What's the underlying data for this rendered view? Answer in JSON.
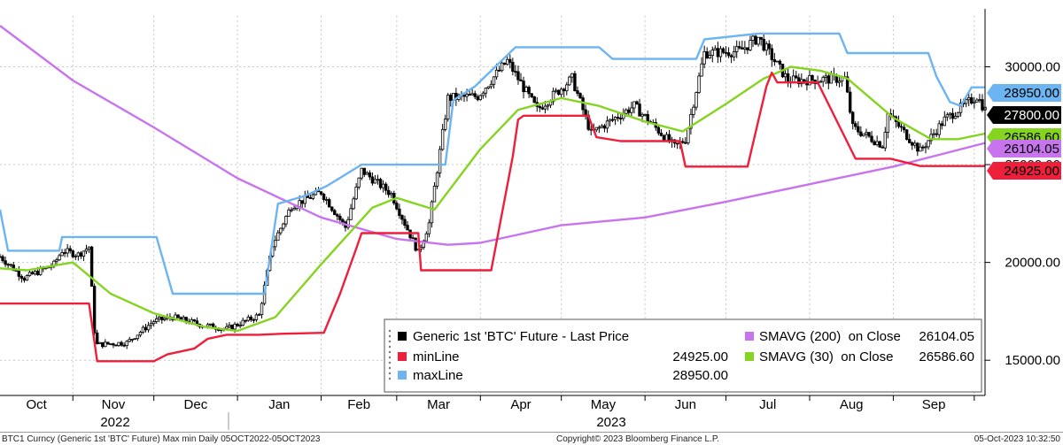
{
  "chart_data": {
    "type": "line",
    "x_axis": {
      "month_labels": [
        "Oct",
        "Nov",
        "Dec",
        "Jan",
        "Feb",
        "Mar",
        "Apr",
        "May",
        "Jun",
        "Jul",
        "Aug",
        "Sep"
      ],
      "year_labels": [
        "2022",
        "2023"
      ]
    },
    "y_axis": {
      "ticks": [
        15000,
        20000,
        25000,
        30000
      ],
      "tick_labels": [
        "15000.00",
        "20000.00",
        "25000.00",
        "30000.00"
      ],
      "ylim": [
        13200,
        32600
      ],
      "grid": true
    },
    "x_range": [
      "2022-10-05",
      "2023-10-05"
    ],
    "series": [
      {
        "name": "Generic 1st 'BTC' Future - Last Price",
        "kind": "candlestick",
        "color": "#000000",
        "last_value": "27800.00",
        "points": [
          [
            "2022-10-05",
            20300
          ],
          [
            "2022-10-14",
            19200
          ],
          [
            "2022-10-25",
            19900
          ],
          [
            "2022-10-28",
            20600
          ],
          [
            "2022-11-03",
            20400
          ],
          [
            "2022-11-07",
            20800
          ],
          [
            "2022-11-09",
            16500
          ],
          [
            "2022-11-10",
            15800
          ],
          [
            "2022-11-21",
            15900
          ],
          [
            "2022-12-01",
            17000
          ],
          [
            "2022-12-08",
            17200
          ],
          [
            "2022-12-19",
            16800
          ],
          [
            "2022-12-28",
            16600
          ],
          [
            "2023-01-09",
            17300
          ],
          [
            "2023-01-14",
            20900
          ],
          [
            "2023-01-21",
            22900
          ],
          [
            "2023-02-01",
            23600
          ],
          [
            "2023-02-10",
            21800
          ],
          [
            "2023-02-16",
            24700
          ],
          [
            "2023-02-27",
            23500
          ],
          [
            "2023-03-09",
            20500
          ],
          [
            "2023-03-13",
            22000
          ],
          [
            "2023-03-20",
            28400
          ],
          [
            "2023-03-31",
            28500
          ],
          [
            "2023-04-11",
            30300
          ],
          [
            "2023-04-22",
            27800
          ],
          [
            "2023-05-05",
            29400
          ],
          [
            "2023-05-12",
            26600
          ],
          [
            "2023-05-28",
            28000
          ],
          [
            "2023-06-12",
            25900
          ],
          [
            "2023-06-16",
            26300
          ],
          [
            "2023-06-23",
            30700
          ],
          [
            "2023-07-06",
            30800
          ],
          [
            "2023-07-13",
            31500
          ],
          [
            "2023-07-24",
            29300
          ],
          [
            "2023-08-14",
            29400
          ],
          [
            "2023-08-17",
            26900
          ],
          [
            "2023-08-28",
            26000
          ],
          [
            "2023-08-30",
            27600
          ],
          [
            "2023-09-11",
            25700
          ],
          [
            "2023-09-20",
            27300
          ],
          [
            "2023-10-02",
            28500
          ],
          [
            "2023-10-05",
            27800
          ]
        ]
      },
      {
        "name": "minLine",
        "kind": "line",
        "color": "#ee1f3b",
        "last_value": "24925.00",
        "legend_value": "24925.00",
        "points": [
          [
            "2022-10-05",
            17900
          ],
          [
            "2022-11-07",
            17900
          ],
          [
            "2022-11-10",
            14950
          ],
          [
            "2022-12-01",
            14950
          ],
          [
            "2022-12-06",
            15300
          ],
          [
            "2022-12-16",
            15600
          ],
          [
            "2022-12-21",
            16100
          ],
          [
            "2022-12-28",
            16300
          ],
          [
            "2023-01-09",
            16300
          ],
          [
            "2023-01-17",
            16350
          ],
          [
            "2023-02-02",
            16400
          ],
          [
            "2023-02-08",
            18400
          ],
          [
            "2023-02-14",
            20700
          ],
          [
            "2023-02-16",
            21500
          ],
          [
            "2023-03-09",
            21500
          ],
          [
            "2023-03-10",
            19600
          ],
          [
            "2023-04-05",
            19600
          ],
          [
            "2023-04-13",
            25400
          ],
          [
            "2023-04-15",
            27300
          ],
          [
            "2023-04-17",
            27500
          ],
          [
            "2023-05-11",
            27500
          ],
          [
            "2023-05-14",
            26400
          ],
          [
            "2023-05-23",
            26200
          ],
          [
            "2023-06-14",
            26200
          ],
          [
            "2023-06-16",
            24900
          ],
          [
            "2023-07-09",
            24900
          ],
          [
            "2023-07-16",
            29000
          ],
          [
            "2023-07-18",
            29700
          ],
          [
            "2023-07-20",
            29200
          ],
          [
            "2023-08-04",
            29200
          ],
          [
            "2023-08-18",
            25300
          ],
          [
            "2023-08-31",
            25300
          ],
          [
            "2023-09-11",
            24925
          ],
          [
            "2023-10-05",
            24925
          ]
        ]
      },
      {
        "name": "maxLine",
        "kind": "line",
        "color": "#6cb4f2",
        "last_value": "28950.00",
        "legend_value": "28950.00",
        "points": [
          [
            "2022-10-05",
            22700
          ],
          [
            "2022-10-08",
            20600
          ],
          [
            "2022-10-27",
            20600
          ],
          [
            "2022-10-28",
            21300
          ],
          [
            "2022-12-02",
            21300
          ],
          [
            "2022-12-08",
            18400
          ],
          [
            "2023-01-11",
            18400
          ],
          [
            "2023-01-16",
            23000
          ],
          [
            "2023-01-26",
            23400
          ],
          [
            "2023-02-03",
            23900
          ],
          [
            "2023-02-16",
            25000
          ],
          [
            "2023-03-19",
            25000
          ],
          [
            "2023-03-22",
            28300
          ],
          [
            "2023-03-30",
            29000
          ],
          [
            "2023-04-11",
            30600
          ],
          [
            "2023-04-14",
            31000
          ],
          [
            "2023-05-15",
            31000
          ],
          [
            "2023-05-20",
            30400
          ],
          [
            "2023-06-20",
            30400
          ],
          [
            "2023-06-23",
            31400
          ],
          [
            "2023-07-13",
            31700
          ],
          [
            "2023-08-12",
            31700
          ],
          [
            "2023-08-15",
            30700
          ],
          [
            "2023-09-14",
            30700
          ],
          [
            "2023-09-17",
            29500
          ],
          [
            "2023-09-22",
            28200
          ],
          [
            "2023-09-26",
            28000
          ],
          [
            "2023-09-30",
            28950
          ],
          [
            "2023-10-05",
            28950
          ]
        ]
      },
      {
        "name": "SMAVG (200)  on Close",
        "kind": "line",
        "color": "#c774ee",
        "last_value": "26104.05",
        "legend_value": "26104.05",
        "points": [
          [
            "2022-10-05",
            32100
          ],
          [
            "2022-11-01",
            29300
          ],
          [
            "2022-12-01",
            26900
          ],
          [
            "2023-01-01",
            24300
          ],
          [
            "2023-02-01",
            22300
          ],
          [
            "2023-03-01",
            21200
          ],
          [
            "2023-03-20",
            20900
          ],
          [
            "2023-04-01",
            21000
          ],
          [
            "2023-05-01",
            21900
          ],
          [
            "2023-06-01",
            22300
          ],
          [
            "2023-07-01",
            23100
          ],
          [
            "2023-08-01",
            24000
          ],
          [
            "2023-09-01",
            24900
          ],
          [
            "2023-10-05",
            26104
          ]
        ]
      },
      {
        "name": "SMAVG (30)  on Close",
        "kind": "line",
        "color": "#84d420",
        "last_value": "26586.60",
        "legend_value": "26586.60",
        "points": [
          [
            "2022-10-05",
            19700
          ],
          [
            "2022-10-15",
            19600
          ],
          [
            "2022-11-01",
            20000
          ],
          [
            "2022-11-15",
            18400
          ],
          [
            "2022-12-01",
            17400
          ],
          [
            "2022-12-20",
            16700
          ],
          [
            "2023-01-01",
            16500
          ],
          [
            "2023-01-15",
            17200
          ],
          [
            "2023-02-01",
            19900
          ],
          [
            "2023-02-20",
            22800
          ],
          [
            "2023-03-01",
            23300
          ],
          [
            "2023-03-15",
            22700
          ],
          [
            "2023-04-01",
            25800
          ],
          [
            "2023-04-15",
            27800
          ],
          [
            "2023-05-01",
            28400
          ],
          [
            "2023-05-15",
            28000
          ],
          [
            "2023-06-01",
            27200
          ],
          [
            "2023-06-15",
            26700
          ],
          [
            "2023-07-01",
            28100
          ],
          [
            "2023-07-15",
            29400
          ],
          [
            "2023-07-25",
            30000
          ],
          [
            "2023-08-05",
            29800
          ],
          [
            "2023-08-15",
            29400
          ],
          [
            "2023-09-01",
            27400
          ],
          [
            "2023-09-15",
            26300
          ],
          [
            "2023-09-25",
            26300
          ],
          [
            "2023-10-05",
            26586
          ]
        ]
      }
    ],
    "last_price_tags": [
      {
        "text": "28950.00",
        "color": "#6cb4f2",
        "text_color": "#000000",
        "value": 28950
      },
      {
        "text": "27800.00",
        "color": "#000000",
        "text_color": "#ffffff",
        "value": 27800
      },
      {
        "text": "26586.60",
        "color": "#84d420",
        "text_color": "#000000",
        "value": 26586.6
      },
      {
        "text": "26104.05",
        "color": "#c774ee",
        "text_color": "#000000",
        "value": 26104.05
      },
      {
        "text": "24925.00",
        "color": "#ee1f3b",
        "text_color": "#000000",
        "value": 24925
      }
    ],
    "legend_position": "bottom-right"
  },
  "footer": {
    "left": "BTC1 Curncy (Generic 1st 'BTC' Future) Max min  Daily 05OCT2022-05OCT2023",
    "center": "Copyright© 2023 Bloomberg Finance L.P.",
    "right": "05-Oct-2023 10:32:50"
  }
}
